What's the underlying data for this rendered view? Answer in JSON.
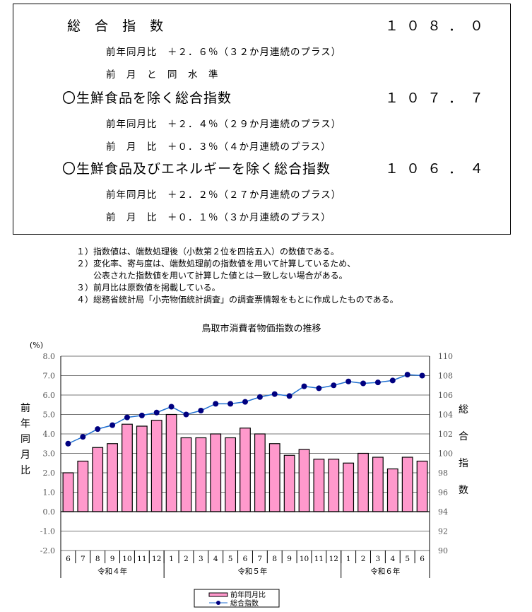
{
  "summary": {
    "items": [
      {
        "title": "総 合 指 数",
        "value": "１０８．０",
        "lines": [
          "前年同月比　＋２．６％（３２か月連続のプラス）",
          "前　月　と　同　水　準"
        ]
      },
      {
        "title": "〇生鮮食品を除く総合指数",
        "value": "１０７．７",
        "lines": [
          "前年同月比　＋２．４％（２９か月連続のプラス）",
          "前　月　比　＋０．３％（４か月連続のプラス）"
        ]
      },
      {
        "title": "〇生鮮食品及びエネルギーを除く総合指数",
        "value": "１０６．４",
        "lines": [
          "前年同月比　＋２．２％（２７か月連続のプラス）",
          "前　月　比　＋０．１％（３か月連続のプラス）"
        ]
      }
    ]
  },
  "notes": [
    "１）指数値は、端数処理後（小数第２位を四捨五入）の数値である。",
    "２）変化率、寄与度は、端数処理前の指数値を用いて計算しているため、",
    "　　公表された指数値を用いて計算した値とは一致しない場合がある。",
    "３）前月比は原数値を掲載している。",
    "４）総務省統計局「小売物価統計調査」の調査票情報をもとに作成したものである。"
  ],
  "chart_data": {
    "type": "bar+line",
    "title": "鳥取市消費者物価指数の推移",
    "left_unit": "(%)",
    "left_label": "前年同月比",
    "right_label": "総合指数",
    "categories": [
      "6",
      "7",
      "8",
      "9",
      "10",
      "11",
      "12",
      "1",
      "2",
      "3",
      "4",
      "5",
      "6",
      "7",
      "8",
      "9",
      "10",
      "11",
      "12",
      "1",
      "2",
      "3",
      "4",
      "5",
      "6"
    ],
    "eras": [
      {
        "label": "令和４年",
        "count": 7
      },
      {
        "label": "令和５年",
        "count": 12
      },
      {
        "label": "令和６年",
        "count": 6
      }
    ],
    "left_ylim": [
      -2,
      8
    ],
    "left_ticks": [
      "8.0",
      "7.0",
      "6.0",
      "5.0",
      "4.0",
      "3.0",
      "2.0",
      "1.0",
      "0.0",
      "-1.0",
      "-2.0"
    ],
    "right_ylim": [
      90,
      110
    ],
    "right_ticks": [
      "110",
      "108",
      "106",
      "104",
      "102",
      "100",
      "98",
      "96",
      "94",
      "92",
      "90"
    ],
    "grid": true,
    "legend_position": "bottom",
    "series": [
      {
        "name": "前年同月比",
        "type": "bar",
        "axis": "left",
        "color": "#ff99cc",
        "values": [
          2.0,
          2.6,
          3.3,
          3.5,
          4.5,
          4.4,
          4.7,
          5.0,
          3.8,
          3.8,
          4.0,
          3.8,
          4.3,
          4.0,
          3.5,
          2.9,
          3.2,
          2.7,
          2.7,
          2.5,
          3.0,
          2.8,
          2.2,
          2.8,
          2.6
        ]
      },
      {
        "name": "総合指数",
        "type": "line",
        "axis": "right",
        "color": "#000080",
        "line_color": "#1f6fd0",
        "values": [
          101.0,
          101.7,
          102.5,
          102.9,
          103.7,
          103.9,
          104.2,
          104.8,
          104.0,
          104.4,
          105.1,
          105.1,
          105.3,
          105.8,
          106.1,
          105.9,
          106.9,
          106.7,
          107.0,
          107.4,
          107.2,
          107.3,
          107.5,
          108.1,
          108.0
        ]
      }
    ]
  }
}
